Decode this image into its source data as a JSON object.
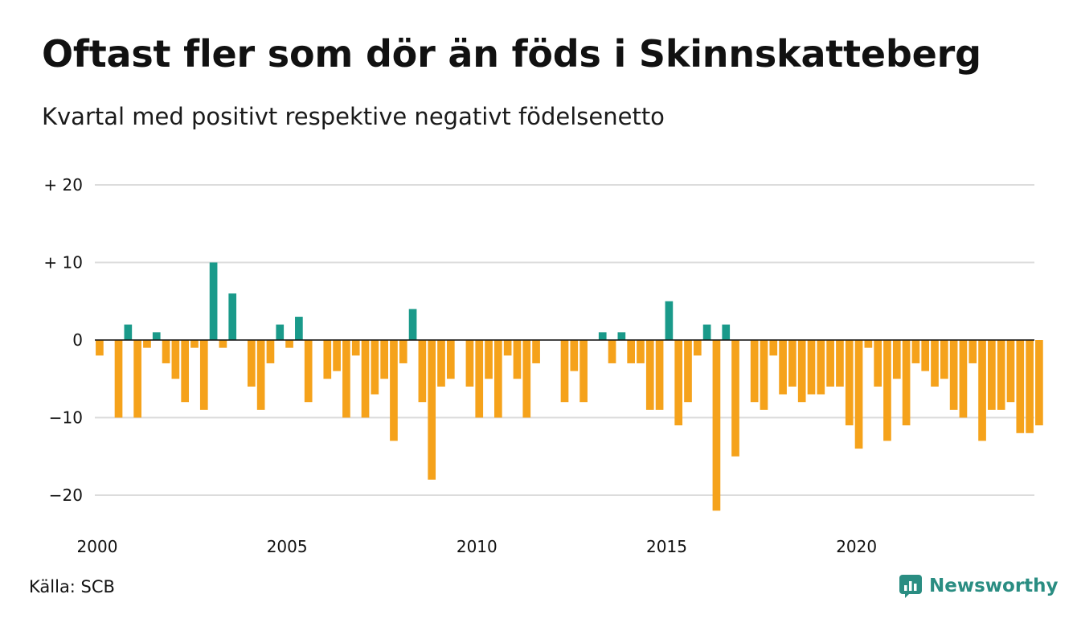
{
  "title": "Oftast fler som dör än föds i Skinnskatteberg",
  "subtitle": "Kvartal med positivt respektive negativt födelsenetto",
  "source": "Källa: SCB",
  "brand": {
    "name": "Newsworthy",
    "icon": "newsworthy-logo-icon"
  },
  "colors": {
    "positive": "#1a9a8a",
    "negative": "#f5a21b",
    "grid": "#dcdcdc",
    "brand": "#2a8d82"
  },
  "chart_data": {
    "type": "bar",
    "title": "Oftast fler som dör än föds i Skinnskatteberg",
    "subtitle": "Kvartal med positivt respektive negativt födelsenetto",
    "xlabel": "",
    "ylabel": "",
    "ylim": [
      -24,
      20
    ],
    "xlim": [
      2000,
      2024.75
    ],
    "grid": true,
    "yticks": [
      20,
      10,
      0,
      -10,
      -20
    ],
    "ytick_labels": [
      "+ 20",
      "+ 10",
      "0",
      "−10",
      "−20"
    ],
    "xticks": [
      2000,
      2005,
      2010,
      2015,
      2020
    ],
    "xtick_labels": [
      "2000",
      "2005",
      "2010",
      "2015",
      "2020"
    ],
    "start": "2000 Q1",
    "frequency": "quarterly",
    "values": [
      -2,
      0,
      -10,
      2,
      -10,
      -1,
      1,
      -3,
      -5,
      -8,
      -1,
      -9,
      10,
      -1,
      6,
      0,
      -6,
      -9,
      -3,
      2,
      -1,
      3,
      -8,
      0,
      -5,
      -4,
      -10,
      -2,
      -10,
      -7,
      -5,
      -13,
      -3,
      4,
      -8,
      -18,
      -6,
      -5,
      0,
      -6,
      -10,
      -5,
      -10,
      -2,
      -5,
      -10,
      -3,
      0,
      0,
      -8,
      -4,
      -8,
      0,
      1,
      -3,
      1,
      -3,
      -3,
      -9,
      -9,
      5,
      -11,
      -8,
      -2,
      2,
      -22,
      2,
      -15,
      0,
      -8,
      -9,
      -2,
      -7,
      -6,
      -8,
      -7,
      -7,
      -6,
      -6,
      -11,
      -14,
      -1,
      -6,
      -13,
      -5,
      -11,
      -3,
      -4,
      -6,
      -5,
      -9,
      -10,
      -3,
      -13,
      -9,
      -9,
      -8,
      -12,
      -12,
      -11
    ]
  }
}
